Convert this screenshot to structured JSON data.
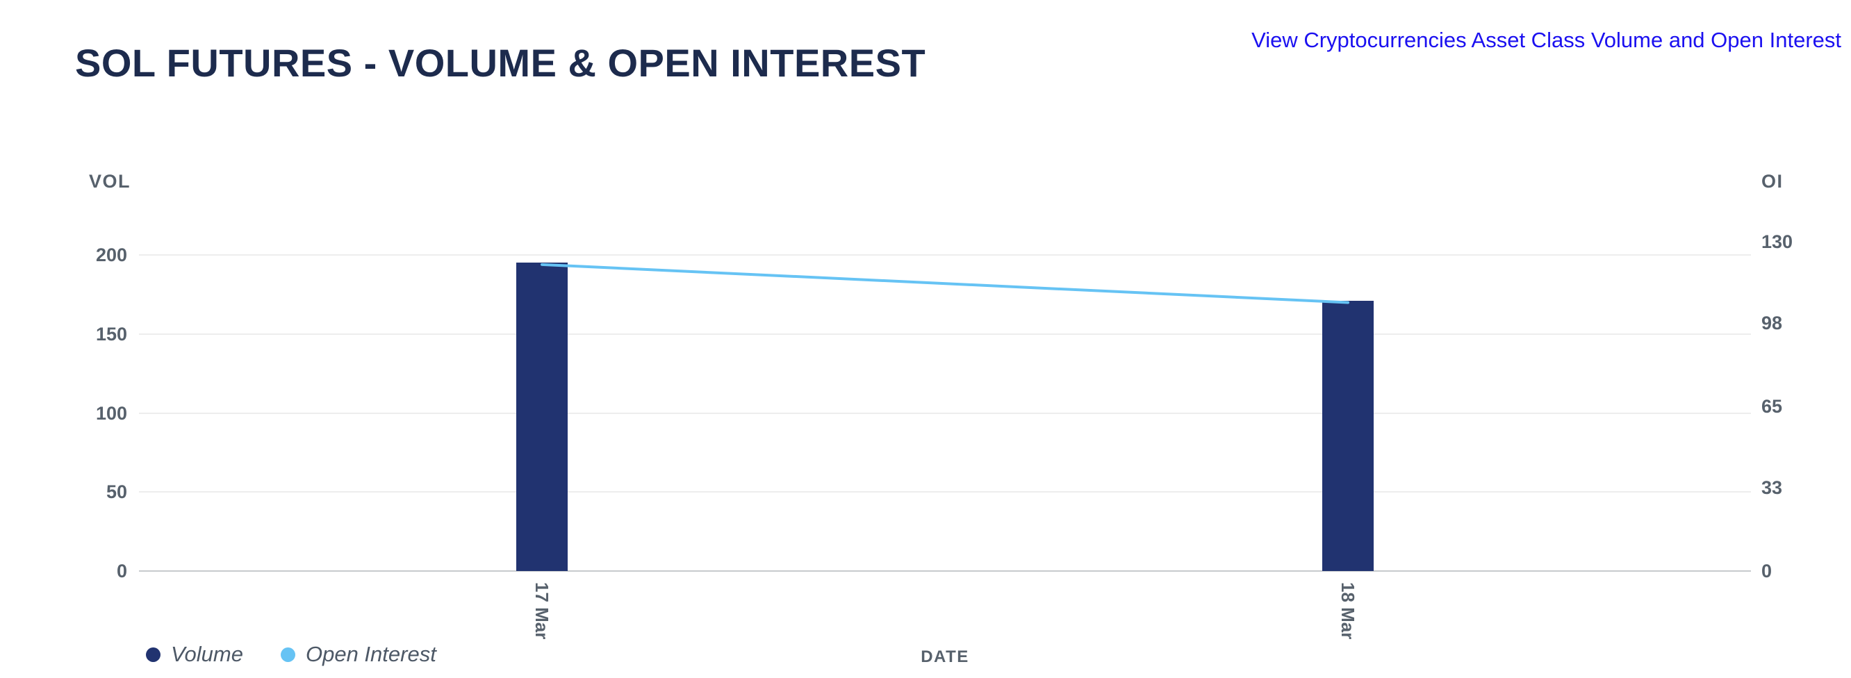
{
  "header": {
    "title": "SOL FUTURES - VOLUME & OPEN INTEREST",
    "link_text": "View Cryptocurrencies Asset Class Volume and Open Interest"
  },
  "colors": {
    "title_navy": "#1d2b4d",
    "link_blue": "#1b10f0",
    "axis_text": "#57616c",
    "legend_text": "#4d5866",
    "gridline": "#ededed",
    "axis_line": "#c7cacd"
  },
  "chart_data": {
    "type": "bar",
    "subtype": "bar+line dual-axis combo",
    "title": "SOL FUTURES - VOLUME & OPEN INTEREST",
    "categories": [
      "17 Mar",
      "18 Mar"
    ],
    "series": [
      {
        "name": "Volume",
        "type": "bar",
        "axis": "left",
        "values": [
          195,
          171
        ],
        "color": "#213370"
      },
      {
        "name": "Open Interest",
        "type": "line",
        "axis": "right",
        "values": [
          121,
          106
        ],
        "color": "#66c3f4"
      }
    ],
    "left_axis": {
      "label": "VOL",
      "range": [
        0,
        200
      ],
      "ticks": [
        200,
        150,
        100,
        50,
        0
      ]
    },
    "right_axis": {
      "label": "OI",
      "range": [
        0,
        130
      ],
      "ticks": [
        130,
        98,
        65,
        33,
        0
      ]
    },
    "x_axis": {
      "label": "DATE"
    },
    "grid": "horizontal",
    "legend_position": "bottom-left"
  }
}
